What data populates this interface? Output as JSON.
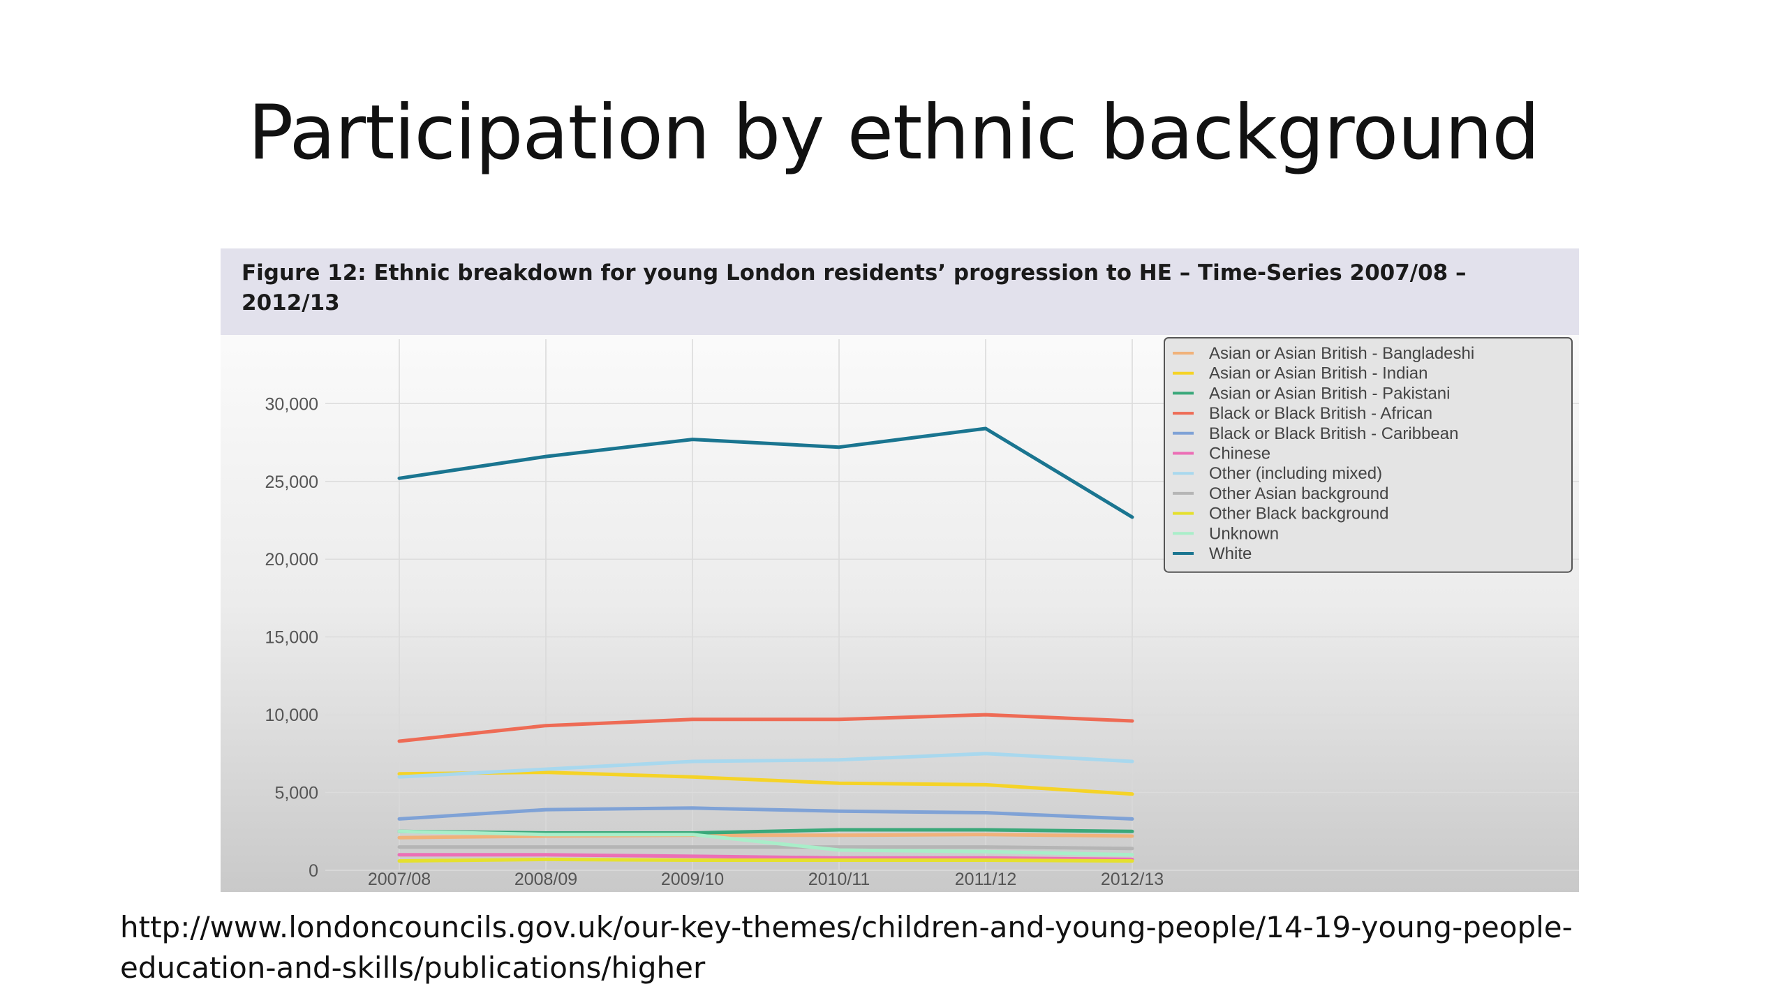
{
  "slide": {
    "title": "Participation by ethnic background",
    "source_line1": "http://www.londoncouncils.gov.uk/our-key-themes/children-and-young-people/14-19-young-people-",
    "source_line2": "education-and-skills/publications/higher"
  },
  "chart_data": {
    "type": "line",
    "title": "Figure 12:  Ethnic breakdown for young London residents’ progression to HE – Time-Series 2007/08 – 2012/13",
    "xlabel": "",
    "ylabel": "",
    "categories": [
      "2007/08",
      "2008/09",
      "2009/10",
      "2010/11",
      "2011/12",
      "2012/13"
    ],
    "ylim": [
      0,
      35000
    ],
    "yticks": [
      0,
      5000,
      10000,
      15000,
      20000,
      25000,
      30000
    ],
    "ytick_labels": [
      "0",
      "5,000",
      "10,000",
      "15,000",
      "20,000",
      "25,000",
      "30,000"
    ],
    "grid": true,
    "legend_position": "top-right",
    "series": [
      {
        "name": "Asian or Asian British - Bangladeshi",
        "color": "#f0b27a",
        "values": [
          2100,
          2200,
          2250,
          2250,
          2300,
          2200
        ]
      },
      {
        "name": "Asian or Asian British - Indian",
        "color": "#f5d327",
        "values": [
          6200,
          6300,
          6000,
          5600,
          5500,
          4900
        ]
      },
      {
        "name": "Asian or Asian British - Pakistani",
        "color": "#3aa87a",
        "values": [
          2500,
          2400,
          2400,
          2600,
          2600,
          2500
        ]
      },
      {
        "name": "Black or Black British - African",
        "color": "#ee6b55",
        "values": [
          8300,
          9300,
          9700,
          9700,
          10000,
          9600
        ]
      },
      {
        "name": "Black or Black British - Caribbean",
        "color": "#7fa2d6",
        "values": [
          3300,
          3900,
          4000,
          3800,
          3700,
          3300
        ]
      },
      {
        "name": "Chinese",
        "color": "#ec6fb6",
        "values": [
          1000,
          1000,
          900,
          800,
          800,
          700
        ]
      },
      {
        "name": "Other (including mixed)",
        "color": "#a8d8ee",
        "values": [
          6000,
          6500,
          7000,
          7100,
          7500,
          7000
        ]
      },
      {
        "name": "Other Asian background",
        "color": "#b5b5b5",
        "values": [
          1500,
          1500,
          1500,
          1500,
          1500,
          1400
        ]
      },
      {
        "name": "Other Black background",
        "color": "#e5e02e",
        "values": [
          600,
          700,
          650,
          650,
          650,
          600
        ]
      },
      {
        "name": "Unknown",
        "color": "#a9eec9",
        "values": [
          2500,
          2300,
          2300,
          1300,
          1200,
          1000
        ]
      },
      {
        "name": "White",
        "color": "#1a7590",
        "values": [
          25200,
          26600,
          27700,
          27200,
          28400,
          22700
        ]
      }
    ]
  }
}
